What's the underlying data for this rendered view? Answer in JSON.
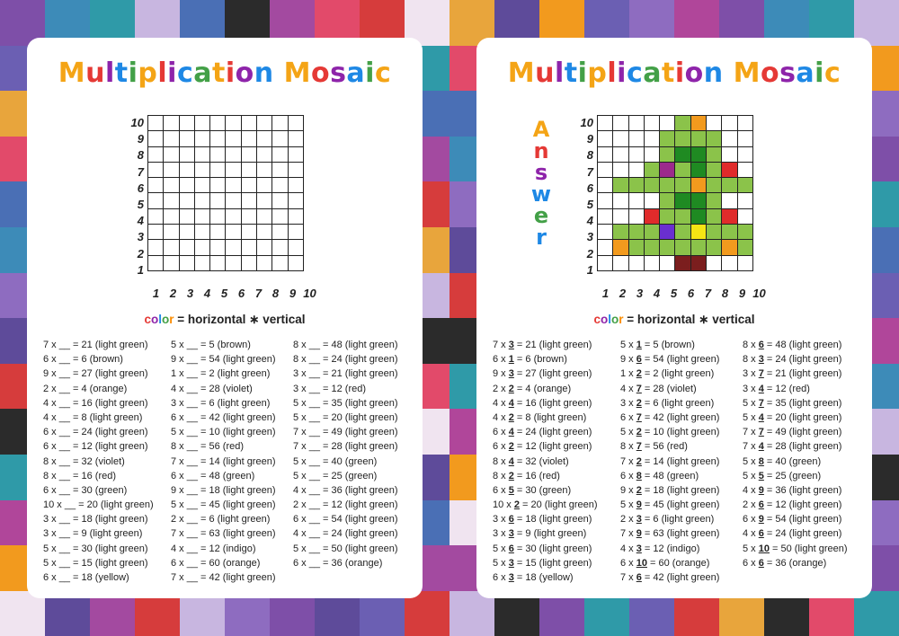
{
  "title": "Multiplication Mosaic",
  "title_colors": [
    "#f4a416",
    "#e53935",
    "#8e24aa",
    "#1e88e5",
    "#43a047",
    "#f4a416",
    "#e53935",
    "#8e24aa",
    "#1e88e5",
    "#43a047",
    "#f4a416",
    "#e53935",
    "#8e24aa",
    "#1e88e5",
    "#43a047",
    "#f4a416",
    "#e53935",
    "#8e24aa",
    "#1e88e5",
    "#43a047",
    "#f4a416"
  ],
  "formula": {
    "c1": "c",
    "c2": "o",
    "c3": "l",
    "c4": "o",
    "c5": "r",
    "rest": " = horizontal ∗ vertical"
  },
  "answer_word": [
    "A",
    "n",
    "s",
    "w",
    "e",
    "r"
  ],
  "answer_colors": [
    "#f4a416",
    "#e53935",
    "#8e24aa",
    "#1e88e5",
    "#43a047",
    "#1e88e5"
  ],
  "axis_y": [
    "10",
    "9",
    "8",
    "7",
    "6",
    "5",
    "4",
    "3",
    "2",
    "1"
  ],
  "axis_x": [
    "1",
    "2",
    "3",
    "4",
    "5",
    "6",
    "7",
    "8",
    "9",
    "10"
  ],
  "color_map": {
    "light green": "#8bc34a",
    "brown": "#7b1e1e",
    "orange": "#f29a1e",
    "violet": "#9c2a8c",
    "red": "#e02b2b",
    "green": "#1f8a22",
    "indigo": "#6a2fd0",
    "yellow": "#f5e514"
  },
  "mosaic": [
    [
      "",
      "",
      "",
      "",
      "",
      "light green",
      "orange",
      "",
      "",
      ""
    ],
    [
      "",
      "",
      "",
      "",
      "light green",
      "light green",
      "light green",
      "light green",
      "",
      ""
    ],
    [
      "",
      "",
      "",
      "",
      "light green",
      "green",
      "green",
      "light green",
      "",
      ""
    ],
    [
      "",
      "",
      "",
      "light green",
      "violet",
      "light green",
      "green",
      "light green",
      "red",
      ""
    ],
    [
      "",
      "light green",
      "light green",
      "light green",
      "light green",
      "light green",
      "orange",
      "light green",
      "light green",
      "light green"
    ],
    [
      "",
      "",
      "",
      "",
      "light green",
      "green",
      "green",
      "light green",
      "",
      ""
    ],
    [
      "",
      "",
      "",
      "red",
      "light green",
      "light green",
      "green",
      "light green",
      "red",
      ""
    ],
    [
      "",
      "light green",
      "light green",
      "light green",
      "indigo",
      "light green",
      "yellow",
      "light green",
      "light green",
      "light green"
    ],
    [
      "",
      "orange",
      "light green",
      "light green",
      "light green",
      "light green",
      "light green",
      "light green",
      "orange",
      "light green"
    ],
    [
      "",
      "",
      "",
      "",
      "",
      "brown",
      "brown",
      "",
      "",
      ""
    ]
  ],
  "worksheet": {
    "col1": [
      "7 x __ = 21 (light green)",
      "6 x __ = 6 (brown)",
      "9 x __ = 27 (light green)",
      "2 x __ = 4 (orange)",
      "4 x __ = 16 (light green)",
      "4 x __ = 8 (light green)",
      "6 x __ = 24 (light green)",
      "6 x __ = 12 (light green)",
      "8 x __ = 32 (violet)",
      "8 x __ = 16 (red)",
      "6 x __ = 30 (green)",
      "10 x __ = 20 (light green)",
      "3 x __ = 18 (light green)",
      "3 x __ = 9 (light green)",
      "5 x __ = 30 (light green)",
      "5 x __ = 15 (light green)",
      "6 x __ = 18 (yellow)"
    ],
    "col2": [
      "5 x __ = 5 (brown)",
      "9 x __ = 54 (light green)",
      "1 x __ = 2 (light green)",
      "4 x __ = 28 (violet)",
      "3 x __ = 6 (light green)",
      "6 x __ = 42 (light green)",
      "5 x __ = 10 (light green)",
      "8 x __ = 56 (red)",
      "7 x __ = 14 (light green)",
      "6 x __ = 48 (green)",
      "9 x __ = 18 (light green)",
      "5 x __ = 45 (light green)",
      "2 x __ = 6 (light green)",
      "7 x __ = 63 (light green)",
      "4 x __ = 12 (indigo)",
      "6 x __ = 60 (orange)",
      "7 x __ = 42 (light green)"
    ],
    "col3": [
      "8 x __ = 48 (light green)",
      "8 x __ = 24 (light green)",
      "3 x __ = 21 (light green)",
      "3 x __ = 12 (red)",
      "5 x __ = 35 (light green)",
      "5 x __ = 20 (light green)",
      "7 x __ = 49 (light green)",
      "7 x __ = 28 (light green)",
      "5 x __ = 40 (green)",
      "5 x __ = 25 (green)",
      "4 x __ = 36 (light green)",
      "2 x __ = 12 (light green)",
      "6 x __ = 54 (light green)",
      "4 x __ = 24 (light green)",
      "5 x __ = 50 (light green)",
      "6 x __ = 36 (orange)"
    ]
  },
  "answers": {
    "col1": [
      [
        "7 x ",
        "3",
        " = 21 (light green)"
      ],
      [
        "6 x ",
        "1",
        " = 6 (brown)"
      ],
      [
        "9 x ",
        "3",
        " = 27 (light green)"
      ],
      [
        "2 x ",
        "2",
        " = 4 (orange)"
      ],
      [
        "4 x ",
        "4",
        " = 16 (light green)"
      ],
      [
        "4 x ",
        "2",
        " = 8 (light green)"
      ],
      [
        "6 x ",
        "4",
        " = 24 (light green)"
      ],
      [
        "6 x ",
        "2",
        " = 12 (light green)"
      ],
      [
        "8 x ",
        "4",
        " = 32 (violet)"
      ],
      [
        "8 x ",
        "2",
        " = 16 (red)"
      ],
      [
        "6 x ",
        "5",
        " = 30 (green)"
      ],
      [
        "10 x ",
        "2",
        " = 20 (light green)"
      ],
      [
        "3 x ",
        "6",
        " = 18 (light green)"
      ],
      [
        "3 x ",
        "3",
        " = 9 (light green)"
      ],
      [
        "5 x ",
        "6",
        " = 30 (light green)"
      ],
      [
        "5 x ",
        "3",
        " = 15 (light green)"
      ],
      [
        "6 x ",
        "3",
        " = 18 (yellow)"
      ]
    ],
    "col2": [
      [
        "5 x ",
        "1",
        " = 5 (brown)"
      ],
      [
        "9 x ",
        "6",
        " = 54 (light green)"
      ],
      [
        "1 x ",
        "2",
        " = 2 (light green)"
      ],
      [
        "4 x ",
        "7",
        " = 28 (violet)"
      ],
      [
        "3 x ",
        "2",
        " = 6 (light green)"
      ],
      [
        "6 x ",
        "7",
        " = 42 (light green)"
      ],
      [
        "5 x ",
        "2",
        " = 10 (light green)"
      ],
      [
        "8 x ",
        "7",
        " = 56 (red)"
      ],
      [
        "7 x ",
        "2",
        " = 14 (light green)"
      ],
      [
        "6 x ",
        "8",
        " = 48 (green)"
      ],
      [
        "9 x ",
        "2",
        " = 18 (light green)"
      ],
      [
        "5 x ",
        "9",
        " = 45 (light green)"
      ],
      [
        "2 x ",
        "3",
        " = 6 (light green)"
      ],
      [
        "7 x ",
        "9",
        " = 63 (light green)"
      ],
      [
        "4 x ",
        "3",
        " = 12 (indigo)"
      ],
      [
        "6 x ",
        "10",
        " = 60 (orange)"
      ],
      [
        "7 x ",
        "6",
        " = 42 (light green)"
      ]
    ],
    "col3": [
      [
        "8 x ",
        "6",
        " = 48 (light green)"
      ],
      [
        "8 x ",
        "3",
        " = 24 (light green)"
      ],
      [
        "3 x ",
        "7",
        " = 21 (light green)"
      ],
      [
        "3 x ",
        "4",
        " = 12 (red)"
      ],
      [
        "5 x ",
        "7",
        " = 35 (light green)"
      ],
      [
        "5 x ",
        "4",
        " = 20 (light green)"
      ],
      [
        "7 x ",
        "7",
        " = 49 (light green)"
      ],
      [
        "7 x ",
        "4",
        " = 28 (light green)"
      ],
      [
        "5 x ",
        "8",
        " = 40 (green)"
      ],
      [
        "5 x ",
        "5",
        " = 25 (green)"
      ],
      [
        "4 x ",
        "9",
        " = 36 (light green)"
      ],
      [
        "2 x ",
        "6",
        " = 12 (light green)"
      ],
      [
        "6 x ",
        "9",
        " = 54 (light green)"
      ],
      [
        "4 x ",
        "6",
        " = 24 (light green)"
      ],
      [
        "5 x ",
        "10",
        " = 50 (light green)"
      ],
      [
        "6 x ",
        "6",
        " = 36 (orange)"
      ]
    ]
  },
  "background_palette": [
    "#7e4fa8",
    "#5e4b9a",
    "#a34aa0",
    "#3d8bb8",
    "#f29a1e",
    "#e24a6a",
    "#2f9aa8",
    "#6b5fb3",
    "#d63c3c",
    "#c8b6e0",
    "#8e6cc0",
    "#f0e4f0",
    "#4a6fb5",
    "#b0469a",
    "#e8a53c",
    "#2b2b2b"
  ],
  "watermark_id": "355170379"
}
